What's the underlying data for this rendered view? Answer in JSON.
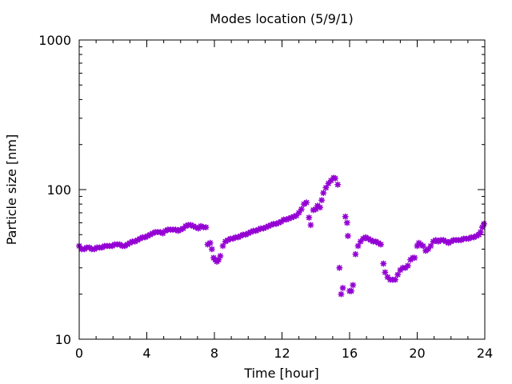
{
  "chart_data": {
    "type": "scatter",
    "title": "Modes location (5/9/1)",
    "xlabel": "Time [hour]",
    "ylabel": "Particle size [nm]",
    "xlim": [
      0,
      24
    ],
    "ylim": [
      10,
      1000
    ],
    "yscale": "log",
    "x_ticks": [
      0,
      4,
      8,
      12,
      16,
      20,
      24
    ],
    "x_tick_labels": [
      "0",
      "4",
      "8",
      "12",
      "16",
      "20",
      "24"
    ],
    "y_ticks": [
      10,
      100,
      1000
    ],
    "y_tick_labels": [
      "10",
      "100",
      "1000"
    ],
    "grid": false,
    "marker_color": "#9400d3",
    "series": [
      {
        "points": [
          [
            0.0,
            42
          ],
          [
            0.15,
            40
          ],
          [
            0.3,
            40
          ],
          [
            0.45,
            41
          ],
          [
            0.6,
            41
          ],
          [
            0.75,
            40
          ],
          [
            0.9,
            40
          ],
          [
            1.05,
            41
          ],
          [
            1.2,
            41
          ],
          [
            1.35,
            41
          ],
          [
            1.5,
            42
          ],
          [
            1.65,
            42
          ],
          [
            1.8,
            42
          ],
          [
            1.95,
            42
          ],
          [
            2.1,
            43
          ],
          [
            2.25,
            43
          ],
          [
            2.4,
            43
          ],
          [
            2.55,
            42
          ],
          [
            2.7,
            42
          ],
          [
            2.85,
            43
          ],
          [
            3.0,
            44
          ],
          [
            3.15,
            45
          ],
          [
            3.3,
            45
          ],
          [
            3.45,
            46
          ],
          [
            3.6,
            47
          ],
          [
            3.75,
            48
          ],
          [
            3.9,
            48
          ],
          [
            4.05,
            49
          ],
          [
            4.2,
            50
          ],
          [
            4.35,
            51
          ],
          [
            4.5,
            52
          ],
          [
            4.65,
            52
          ],
          [
            4.8,
            52
          ],
          [
            4.95,
            51
          ],
          [
            5.1,
            53
          ],
          [
            5.25,
            54
          ],
          [
            5.4,
            54
          ],
          [
            5.55,
            54
          ],
          [
            5.7,
            54
          ],
          [
            5.85,
            53
          ],
          [
            6.0,
            54
          ],
          [
            6.15,
            55
          ],
          [
            6.3,
            57
          ],
          [
            6.45,
            58
          ],
          [
            6.6,
            58
          ],
          [
            6.75,
            57
          ],
          [
            6.9,
            56
          ],
          [
            7.05,
            55
          ],
          [
            7.2,
            57
          ],
          [
            7.35,
            56
          ],
          [
            7.5,
            56
          ],
          [
            7.6,
            43
          ],
          [
            7.75,
            44
          ],
          [
            7.85,
            40
          ],
          [
            7.95,
            35
          ],
          [
            8.05,
            34
          ],
          [
            8.15,
            33
          ],
          [
            8.25,
            34
          ],
          [
            8.35,
            36
          ],
          [
            8.5,
            42
          ],
          [
            8.65,
            45
          ],
          [
            8.8,
            46
          ],
          [
            8.95,
            47
          ],
          [
            9.1,
            47
          ],
          [
            9.25,
            48
          ],
          [
            9.4,
            48
          ],
          [
            9.55,
            49
          ],
          [
            9.7,
            50
          ],
          [
            9.85,
            50
          ],
          [
            10.0,
            51
          ],
          [
            10.15,
            52
          ],
          [
            10.3,
            53
          ],
          [
            10.45,
            53
          ],
          [
            10.6,
            54
          ],
          [
            10.75,
            55
          ],
          [
            10.9,
            55
          ],
          [
            11.05,
            56
          ],
          [
            11.2,
            57
          ],
          [
            11.35,
            58
          ],
          [
            11.5,
            59
          ],
          [
            11.65,
            59
          ],
          [
            11.8,
            60
          ],
          [
            11.95,
            61
          ],
          [
            12.1,
            63
          ],
          [
            12.25,
            63
          ],
          [
            12.4,
            64
          ],
          [
            12.55,
            65
          ],
          [
            12.7,
            66
          ],
          [
            12.85,
            67
          ],
          [
            13.0,
            70
          ],
          [
            13.15,
            74
          ],
          [
            13.3,
            80
          ],
          [
            13.45,
            82
          ],
          [
            13.6,
            65
          ],
          [
            13.7,
            58
          ],
          [
            13.85,
            73
          ],
          [
            14.0,
            74
          ],
          [
            14.1,
            78
          ],
          [
            14.25,
            76
          ],
          [
            14.35,
            85
          ],
          [
            14.45,
            95
          ],
          [
            14.6,
            103
          ],
          [
            14.75,
            110
          ],
          [
            14.9,
            115
          ],
          [
            15.05,
            120
          ],
          [
            15.15,
            119
          ],
          [
            15.3,
            108
          ],
          [
            15.4,
            30
          ],
          [
            15.5,
            20
          ],
          [
            15.6,
            22
          ],
          [
            15.75,
            66
          ],
          [
            15.85,
            60
          ],
          [
            15.9,
            49
          ],
          [
            16.0,
            21
          ],
          [
            16.1,
            21
          ],
          [
            16.2,
            23
          ],
          [
            16.35,
            37
          ],
          [
            16.5,
            42
          ],
          [
            16.65,
            45
          ],
          [
            16.8,
            47
          ],
          [
            16.95,
            48
          ],
          [
            17.1,
            47
          ],
          [
            17.25,
            46
          ],
          [
            17.4,
            45
          ],
          [
            17.55,
            45
          ],
          [
            17.7,
            44
          ],
          [
            17.85,
            43
          ],
          [
            18.0,
            32
          ],
          [
            18.1,
            28
          ],
          [
            18.25,
            26
          ],
          [
            18.4,
            25
          ],
          [
            18.55,
            25
          ],
          [
            18.7,
            25
          ],
          [
            18.85,
            27
          ],
          [
            19.0,
            29
          ],
          [
            19.15,
            30
          ],
          [
            19.3,
            30
          ],
          [
            19.45,
            31
          ],
          [
            19.6,
            34
          ],
          [
            19.75,
            35
          ],
          [
            19.85,
            35
          ],
          [
            20.0,
            42
          ],
          [
            20.1,
            44
          ],
          [
            20.2,
            43
          ],
          [
            20.35,
            42
          ],
          [
            20.5,
            39
          ],
          [
            20.65,
            40
          ],
          [
            20.8,
            42
          ],
          [
            20.95,
            45
          ],
          [
            21.1,
            46
          ],
          [
            21.25,
            45
          ],
          [
            21.4,
            46
          ],
          [
            21.55,
            46
          ],
          [
            21.7,
            45
          ],
          [
            21.85,
            44
          ],
          [
            22.0,
            45
          ],
          [
            22.15,
            46
          ],
          [
            22.3,
            46
          ],
          [
            22.45,
            46
          ],
          [
            22.6,
            46
          ],
          [
            22.75,
            47
          ],
          [
            22.9,
            47
          ],
          [
            23.05,
            47
          ],
          [
            23.2,
            48
          ],
          [
            23.35,
            48
          ],
          [
            23.5,
            49
          ],
          [
            23.65,
            50
          ],
          [
            23.75,
            52
          ],
          [
            23.85,
            56
          ],
          [
            23.95,
            59
          ]
        ]
      }
    ]
  }
}
